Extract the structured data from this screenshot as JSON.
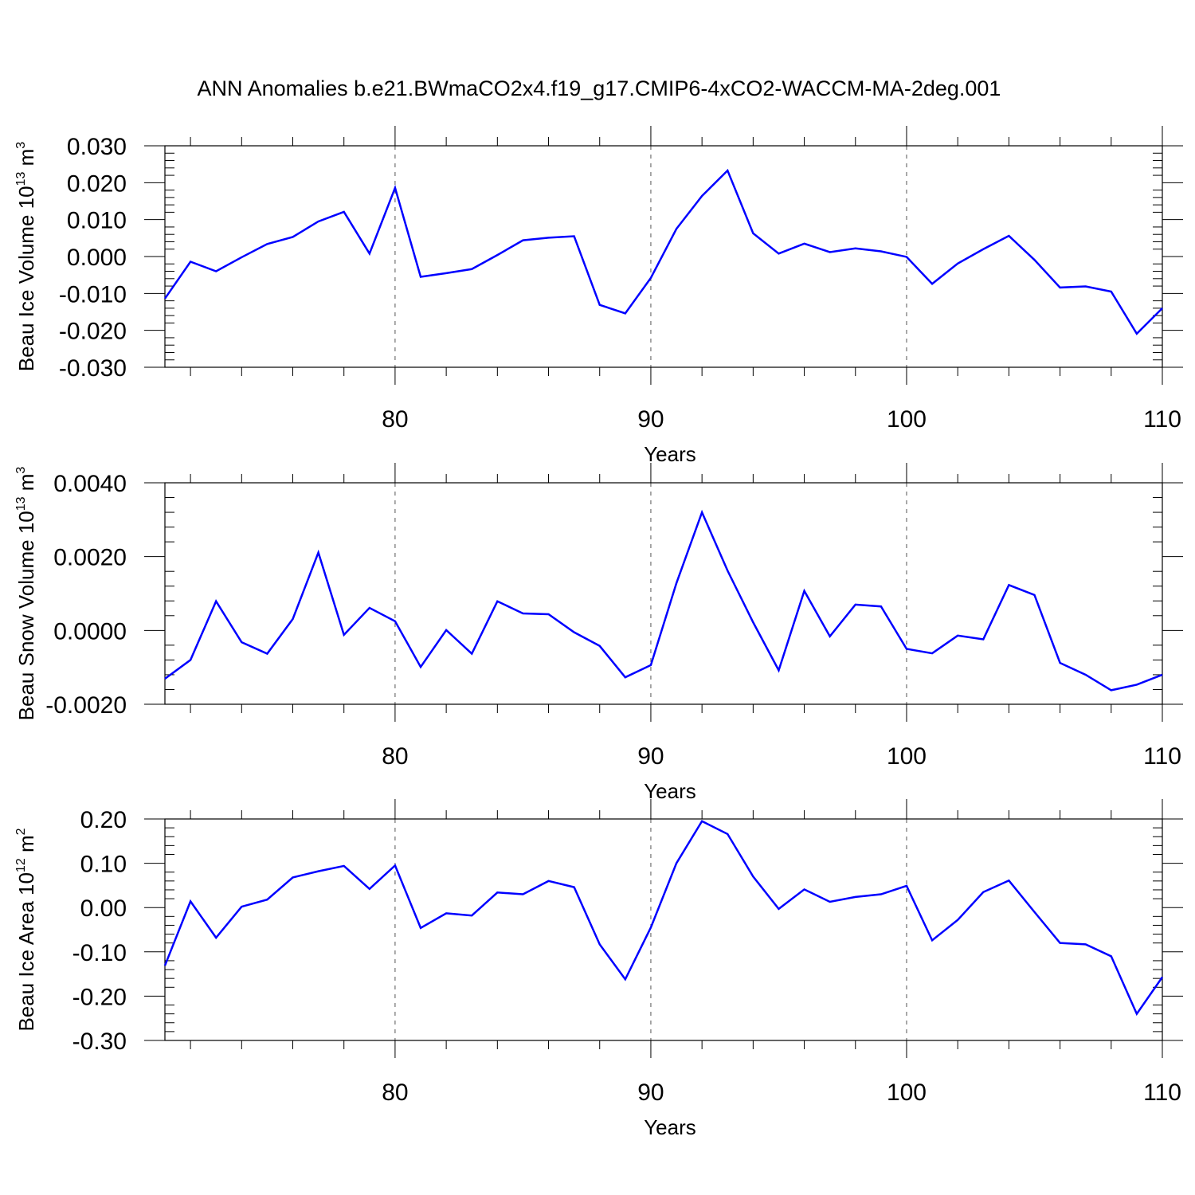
{
  "title": "ANN Anomalies b.e21.BWmaCO2x4.f19_g17.CMIP6-4xCO2-WACCM-MA-2deg.001",
  "line_color": "#0000ff",
  "chart_data": [
    {
      "type": "line",
      "xlabel": "Years",
      "ylabel": "Beau Ice Volume 10",
      "ylabel_exp": "13",
      "ylabel_unit": " m",
      "ylabel_unit_exp": "3",
      "xlim": [
        71,
        110
      ],
      "ylim": [
        -0.03,
        0.03
      ],
      "xticks": [
        80,
        90,
        100,
        110
      ],
      "xtick_labels": [
        "80",
        "90",
        "100",
        "110"
      ],
      "yticks": [
        -0.03,
        -0.02,
        -0.01,
        0.0,
        0.01,
        0.02,
        0.03
      ],
      "ytick_labels": [
        "-0.030",
        "-0.020",
        "-0.010",
        "0.000",
        "0.010",
        "0.020",
        "0.030"
      ],
      "grid": "dashed vertical at major x ticks",
      "x": [
        71,
        72,
        73,
        74,
        75,
        76,
        77,
        78,
        79,
        80,
        81,
        82,
        83,
        84,
        85,
        86,
        87,
        88,
        89,
        90,
        91,
        92,
        93,
        94,
        95,
        96,
        97,
        98,
        99,
        100,
        101,
        102,
        103,
        104,
        105,
        106,
        107,
        108,
        109,
        110
      ],
      "y": [
        -0.0114,
        -0.0014,
        -0.004,
        -0.0002,
        0.0034,
        0.0053,
        0.0095,
        0.0121,
        0.0008,
        0.0186,
        -0.0055,
        -0.0045,
        -0.0034,
        0.0004,
        0.0044,
        0.0051,
        0.0055,
        -0.0131,
        -0.0154,
        -0.0058,
        0.0075,
        0.0164,
        0.0233,
        0.0063,
        0.0008,
        0.0035,
        0.0012,
        0.0022,
        0.0014,
        -0.0001,
        -0.0074,
        -0.0019,
        0.002,
        0.0056,
        -0.0009,
        -0.0084,
        -0.0081,
        -0.0095,
        -0.0209,
        -0.014
      ]
    },
    {
      "type": "line",
      "xlabel": "Years",
      "ylabel": "Beau Snow Volume 10",
      "ylabel_exp": "13",
      "ylabel_unit": " m",
      "ylabel_unit_exp": "3",
      "xlim": [
        71,
        110
      ],
      "ylim": [
        -0.002,
        0.004
      ],
      "xticks": [
        80,
        90,
        100,
        110
      ],
      "xtick_labels": [
        "80",
        "90",
        "100",
        "110"
      ],
      "yticks": [
        -0.002,
        0.0,
        0.002,
        0.004
      ],
      "ytick_labels": [
        "-0.0020",
        "0.0000",
        "0.0020",
        "0.0040"
      ],
      "grid": "dashed vertical at major x ticks",
      "x": [
        71,
        72,
        73,
        74,
        75,
        76,
        77,
        78,
        79,
        80,
        81,
        82,
        83,
        84,
        85,
        86,
        87,
        88,
        89,
        90,
        91,
        92,
        93,
        94,
        95,
        96,
        97,
        98,
        99,
        100,
        101,
        102,
        103,
        104,
        105,
        106,
        107,
        108,
        109,
        110
      ],
      "y": [
        -0.00131,
        -0.0008,
        0.00079,
        -0.00032,
        -0.00063,
        0.00031,
        0.00211,
        -0.00012,
        0.00061,
        0.00025,
        -0.00099,
        1e-05,
        -0.00063,
        0.00079,
        0.00046,
        0.00044,
        -5e-05,
        -0.00042,
        -0.00127,
        -0.00094,
        0.00128,
        0.0032,
        0.00162,
        0.00022,
        -0.00108,
        0.00107,
        -0.00016,
        0.0007,
        0.00065,
        -0.0005,
        -0.00062,
        -0.00014,
        -0.00024,
        0.00123,
        0.00096,
        -0.00088,
        -0.0012,
        -0.00162,
        -0.00147,
        -0.0012
      ]
    },
    {
      "type": "line",
      "xlabel": "Years",
      "ylabel": "Beau Ice Area 10",
      "ylabel_exp": "12",
      "ylabel_unit": " m",
      "ylabel_unit_exp": "2",
      "xlim": [
        71,
        110
      ],
      "ylim": [
        -0.3,
        0.2
      ],
      "xticks": [
        80,
        90,
        100,
        110
      ],
      "xtick_labels": [
        "80",
        "90",
        "100",
        "110"
      ],
      "yticks": [
        -0.3,
        -0.2,
        -0.1,
        0.0,
        0.1,
        0.2
      ],
      "ytick_labels": [
        "-0.30",
        "-0.20",
        "-0.10",
        "0.00",
        "0.10",
        "0.20"
      ],
      "grid": "dashed vertical at major x ticks",
      "x": [
        71,
        72,
        73,
        74,
        75,
        76,
        77,
        78,
        79,
        80,
        81,
        82,
        83,
        84,
        85,
        86,
        87,
        88,
        89,
        90,
        91,
        92,
        93,
        94,
        95,
        96,
        97,
        98,
        99,
        100,
        101,
        102,
        103,
        104,
        105,
        106,
        107,
        108,
        109,
        110
      ],
      "y": [
        -0.131,
        0.014,
        -0.068,
        0.002,
        0.018,
        0.068,
        0.082,
        0.094,
        0.042,
        0.095,
        -0.046,
        -0.013,
        -0.018,
        0.034,
        0.03,
        0.06,
        0.046,
        -0.083,
        -0.162,
        -0.045,
        0.1,
        0.195,
        0.166,
        0.07,
        -0.003,
        0.041,
        0.013,
        0.024,
        0.03,
        0.049,
        -0.074,
        -0.028,
        0.035,
        0.061,
        -0.01,
        -0.08,
        -0.083,
        -0.11,
        -0.24,
        -0.157
      ]
    }
  ]
}
